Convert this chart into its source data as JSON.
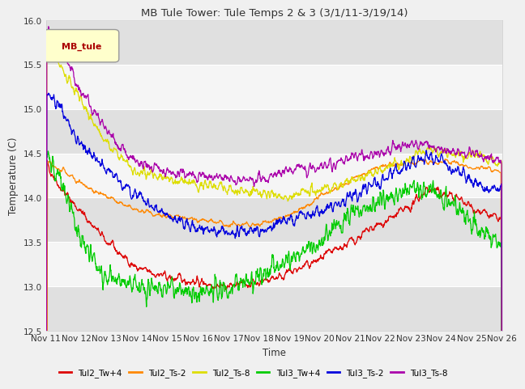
{
  "title": "MB Tule Tower: Tule Temps 2 & 3 (3/1/11-3/19/14)",
  "xlabel": "Time",
  "ylabel": "Temperature (C)",
  "ylim": [
    12.5,
    16.0
  ],
  "yticks": [
    12.5,
    13.0,
    13.5,
    14.0,
    14.5,
    15.0,
    15.5,
    16.0
  ],
  "xtick_labels": [
    "Nov 11",
    "Nov 12",
    "Nov 13",
    "Nov 14",
    "Nov 15",
    "Nov 16",
    "Nov 17",
    "Nov 18",
    "Nov 19",
    "Nov 20",
    "Nov 21",
    "Nov 22",
    "Nov 23",
    "Nov 24",
    "Nov 25",
    "Nov 26"
  ],
  "outer_bg": "#f0f0f0",
  "plot_bg_light": "#f5f5f5",
  "plot_bg_dark": "#e0e0e0",
  "legend_label": "MB_tule",
  "legend_text_color": "#aa0000",
  "legend_box_color": "#ffffcc",
  "legend_box_edge": "#999999",
  "series": [
    {
      "name": "Tul2_Tw+4",
      "color": "#dd0000"
    },
    {
      "name": "Tul2_Ts-2",
      "color": "#ff8800"
    },
    {
      "name": "Tul2_Ts-8",
      "color": "#dddd00"
    },
    {
      "name": "Tul3_Tw+4",
      "color": "#00cc00"
    },
    {
      "name": "Tul3_Ts-2",
      "color": "#0000dd"
    },
    {
      "name": "Tul3_Ts-8",
      "color": "#aa00aa"
    }
  ],
  "n_days": 15,
  "pts_per_day": 96,
  "seed": 42
}
